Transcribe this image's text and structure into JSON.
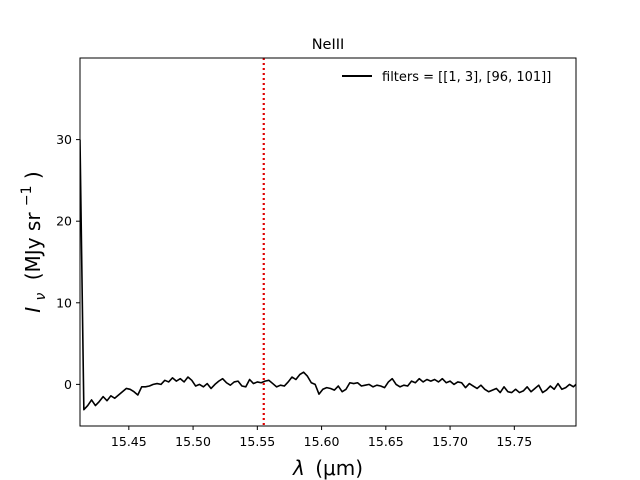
{
  "chart_data": {
    "type": "line",
    "title": "NeIII",
    "xlabel_prefix": "λ",
    "xlabel_unit": "(μm)",
    "ylabel_base": "I",
    "ylabel_sub": "ν",
    "ylabel_unit": "(MJy sr",
    "ylabel_exp": "−1",
    "ylabel_close": ")",
    "xlim": [
      15.412,
      15.798
    ],
    "ylim": [
      -5.1,
      40
    ],
    "x_ticks": [
      15.45,
      15.5,
      15.55,
      15.6,
      15.65,
      15.7,
      15.75
    ],
    "x_tick_labels": [
      "15.45",
      "15.50",
      "15.55",
      "15.60",
      "15.65",
      "15.70",
      "15.75"
    ],
    "y_ticks": [
      0,
      10,
      20,
      30
    ],
    "y_tick_labels": [
      "0",
      "10",
      "20",
      "30"
    ],
    "grid": false,
    "legend_position": "top-right",
    "series": [
      {
        "name": "filters = [[1, 3], [96, 101]]",
        "color": "#000000",
        "x": [
          15.412,
          15.415,
          15.418,
          15.421,
          15.424,
          15.427,
          15.43,
          15.433,
          15.436,
          15.439,
          15.442,
          15.445,
          15.448,
          15.451,
          15.454,
          15.457,
          15.46,
          15.463,
          15.466,
          15.469,
          15.472,
          15.475,
          15.478,
          15.481,
          15.484,
          15.487,
          15.49,
          15.493,
          15.496,
          15.499,
          15.502,
          15.505,
          15.508,
          15.511,
          15.514,
          15.517,
          15.52,
          15.523,
          15.526,
          15.529,
          15.532,
          15.535,
          15.538,
          15.541,
          15.544,
          15.547,
          15.55,
          15.553,
          15.556,
          15.559,
          15.562,
          15.565,
          15.568,
          15.571,
          15.574,
          15.577,
          15.58,
          15.583,
          15.586,
          15.589,
          15.592,
          15.595,
          15.598,
          15.601,
          15.604,
          15.607,
          15.61,
          15.613,
          15.616,
          15.619,
          15.622,
          15.625,
          15.628,
          15.631,
          15.634,
          15.637,
          15.64,
          15.643,
          15.646,
          15.649,
          15.652,
          15.655,
          15.658,
          15.661,
          15.664,
          15.667,
          15.67,
          15.673,
          15.676,
          15.679,
          15.682,
          15.685,
          15.688,
          15.691,
          15.694,
          15.697,
          15.7,
          15.703,
          15.706,
          15.709,
          15.712,
          15.715,
          15.718,
          15.721,
          15.724,
          15.727,
          15.73,
          15.733,
          15.736,
          15.739,
          15.742,
          15.745,
          15.748,
          15.751,
          15.754,
          15.757,
          15.76,
          15.763,
          15.766,
          15.769,
          15.772,
          15.775,
          15.778,
          15.781,
          15.784,
          15.787,
          15.79,
          15.793,
          15.796,
          15.798
        ],
        "y": [
          30.0,
          -3.1,
          -2.6,
          -1.9,
          -2.6,
          -2.1,
          -1.5,
          -2.0,
          -1.4,
          -1.7,
          -1.3,
          -0.9,
          -0.5,
          -0.6,
          -0.9,
          -1.3,
          -0.3,
          -0.3,
          -0.2,
          0.0,
          0.1,
          0.0,
          0.5,
          0.3,
          0.8,
          0.4,
          0.7,
          0.3,
          0.9,
          0.5,
          -0.2,
          0.0,
          -0.3,
          0.1,
          -0.5,
          0.0,
          0.4,
          0.7,
          0.2,
          -0.1,
          0.3,
          0.4,
          -0.2,
          -0.3,
          0.6,
          0.1,
          0.3,
          0.2,
          0.4,
          0.5,
          0.1,
          -0.3,
          -0.1,
          -0.2,
          0.3,
          0.9,
          0.6,
          1.2,
          1.5,
          1.0,
          0.2,
          0.0,
          -1.2,
          -0.6,
          -0.4,
          -0.5,
          -0.7,
          -0.2,
          -0.9,
          -0.6,
          0.2,
          0.1,
          0.2,
          -0.2,
          -0.1,
          0.0,
          -0.3,
          -0.1,
          -0.2,
          -0.4,
          0.3,
          0.7,
          0.0,
          -0.3,
          -0.1,
          -0.2,
          0.4,
          0.2,
          0.7,
          0.3,
          0.6,
          0.4,
          0.6,
          0.3,
          0.7,
          0.2,
          0.4,
          0.0,
          0.3,
          0.2,
          -0.4,
          0.1,
          -0.2,
          -0.5,
          -0.1,
          -0.6,
          -0.9,
          -0.7,
          -0.5,
          -1.0,
          -0.3,
          -0.9,
          -1.0,
          -0.6,
          -1.0,
          -0.8,
          -0.3,
          -0.9,
          -0.5,
          -0.1,
          -1.0,
          -0.7,
          -0.2,
          -0.6,
          0.1,
          -0.6,
          -0.4,
          0.0,
          -0.3,
          0.0
        ]
      }
    ],
    "vline": {
      "x": 15.555,
      "color": "#e00000",
      "style": "dotted"
    }
  }
}
